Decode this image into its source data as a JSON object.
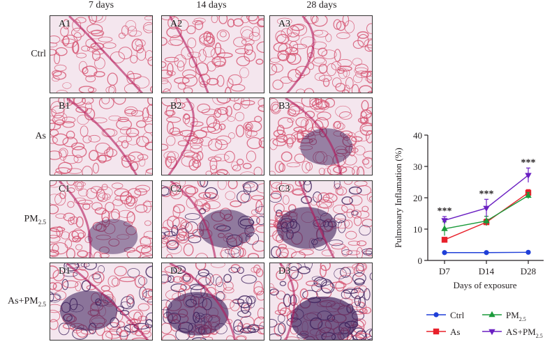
{
  "panels": {
    "columns": [
      "7 days",
      "14 days",
      "28 days"
    ],
    "rows": [
      {
        "label": "Ctrl",
        "sub": "",
        "cells": [
          "A1",
          "A2",
          "A3"
        ]
      },
      {
        "label": "As",
        "sub": "",
        "cells": [
          "B1",
          "B2",
          "B3"
        ]
      },
      {
        "label": "PM",
        "sub": "2.5",
        "cells": [
          "C1",
          "C2",
          "C3"
        ]
      },
      {
        "label": "As+PM",
        "sub": "2.5",
        "cells": [
          "D1",
          "D2",
          "D3"
        ]
      }
    ],
    "tissue_colors": {
      "background": "#f4e6ee",
      "alveolar": "#d4506e",
      "dense": "#3c1e5a",
      "bronchus": "#b2185a"
    }
  },
  "chart_data": {
    "type": "line",
    "xlabel": "Days of exposure",
    "ylabel": "Pulmonary Inflamation (%)",
    "categories": [
      "D7",
      "D14",
      "D28"
    ],
    "ylim": [
      0,
      40
    ],
    "yticks": [
      0,
      10,
      20,
      30,
      40
    ],
    "series": [
      {
        "name": "Ctrl",
        "sub": "",
        "color": "#1f3fd8",
        "marker": "circle",
        "values": [
          2.5,
          2.5,
          2.6
        ],
        "errors": [
          0.3,
          0.3,
          0.3
        ]
      },
      {
        "name": "As",
        "sub": "",
        "color": "#e8202a",
        "marker": "square",
        "values": [
          6.6,
          12.2,
          21.6
        ],
        "errors": [
          0.6,
          1.0,
          1.0
        ]
      },
      {
        "name": "PM",
        "sub": "2.5",
        "color": "#1a9a3a",
        "marker": "triangle-up",
        "values": [
          10.1,
          12.6,
          20.7
        ],
        "errors": [
          2.2,
          1.5,
          1.0
        ]
      },
      {
        "name": "AS+PM",
        "sub": "2.5",
        "color": "#6a1fc2",
        "marker": "triangle-down",
        "values": [
          12.8,
          16.7,
          27.2
        ],
        "errors": [
          1.2,
          2.8,
          2.3
        ]
      }
    ],
    "annotations": [
      {
        "x": "D7",
        "text": "***"
      },
      {
        "x": "D14",
        "text": "***"
      },
      {
        "x": "D28",
        "text": "***"
      }
    ],
    "legend_position": "bottom"
  }
}
